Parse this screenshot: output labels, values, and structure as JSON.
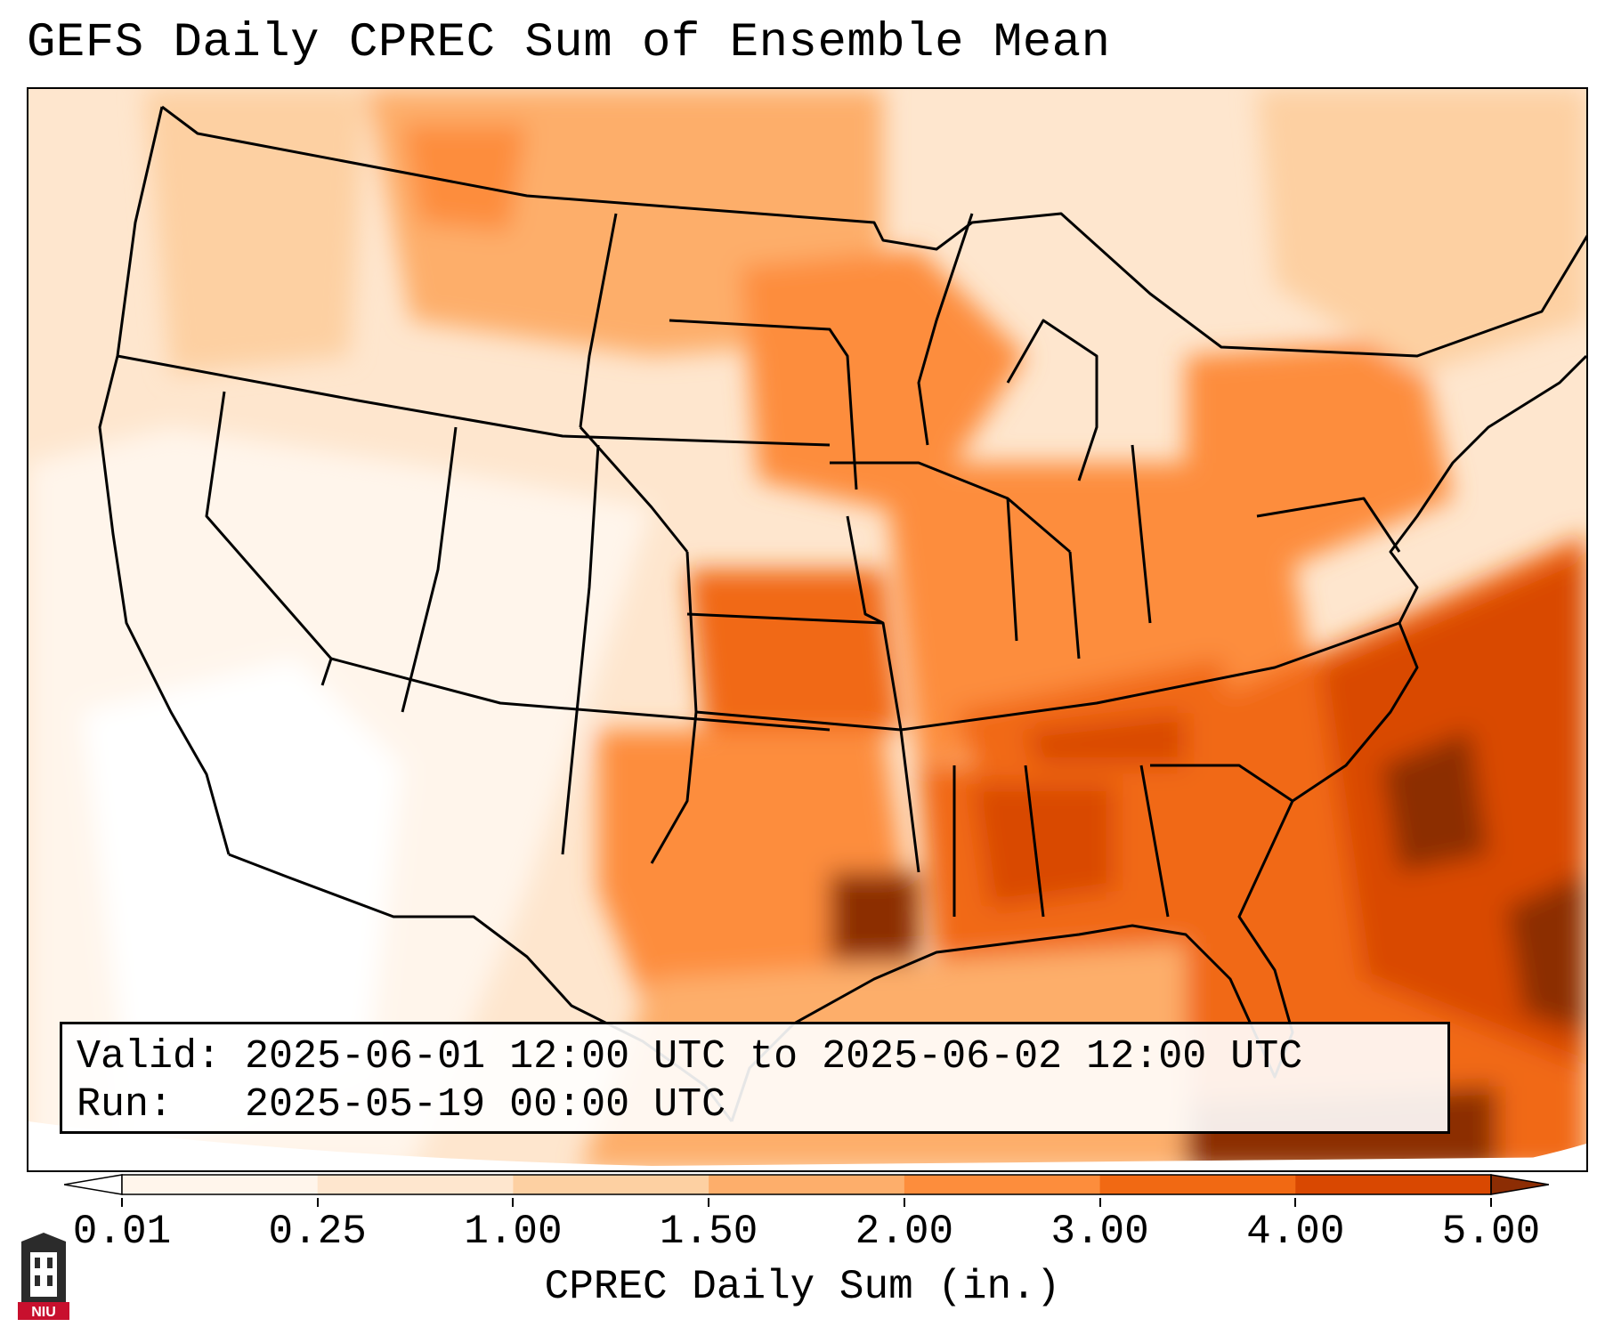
{
  "title": "GEFS Daily CPREC Sum of Ensemble Mean",
  "info": {
    "valid_line": "Valid: 2025-06-01 12:00 UTC to 2025-06-02 12:00 UTC",
    "run_line": "Run:   2025-05-19 00:00 UTC"
  },
  "colorbar": {
    "label": "CPREC Daily Sum (in.)",
    "ticks": [
      "0.01",
      "0.25",
      "1.00",
      "1.50",
      "2.00",
      "3.00",
      "4.00",
      "5.00"
    ],
    "colors": [
      "#fff5eb",
      "#fee6ce",
      "#fdd0a2",
      "#fdae6b",
      "#fd8d3c",
      "#f16913",
      "#d94801",
      "#8c2d04"
    ],
    "extend": "both"
  },
  "logo": {
    "text": "NIU"
  }
}
